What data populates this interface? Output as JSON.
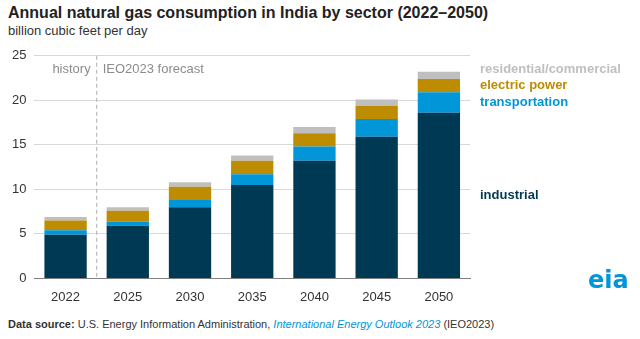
{
  "chart_data": {
    "type": "bar",
    "title": "Annual natural gas consumption in India by sector (2022–2050)",
    "subtitle": "billion cubic feet per day",
    "annotations": [
      "history",
      "IEO2023 forecast"
    ],
    "source": [
      "Data source:",
      "U.S. Energy Information Administration,",
      "International Energy Outlook 2023",
      "(IEO2023)"
    ],
    "logo": "eia",
    "categories": [
      "2022",
      "2025",
      "2030",
      "2035",
      "2040",
      "2045",
      "2050"
    ],
    "series": [
      {
        "name": "industrial",
        "color": "#003953",
        "values": [
          4.9,
          5.9,
          8.0,
          10.5,
          13.2,
          15.9,
          18.6
        ]
      },
      {
        "name": "transportation",
        "color": "#0096d7",
        "values": [
          0.5,
          0.5,
          0.8,
          1.2,
          1.6,
          2.0,
          2.3
        ]
      },
      {
        "name": "electric power",
        "color": "#bd8c00",
        "values": [
          1.1,
          1.2,
          1.5,
          1.5,
          1.5,
          1.5,
          1.5
        ]
      },
      {
        "name": "residential/commercial",
        "color": "#bfbfbf",
        "values": [
          0.4,
          0.4,
          0.5,
          0.6,
          0.7,
          0.7,
          0.8
        ]
      }
    ],
    "ylim": [
      0,
      25
    ],
    "yticks": [
      0,
      5,
      10,
      15,
      20,
      25
    ],
    "stacked": true,
    "grid": true,
    "legend": "right"
  }
}
